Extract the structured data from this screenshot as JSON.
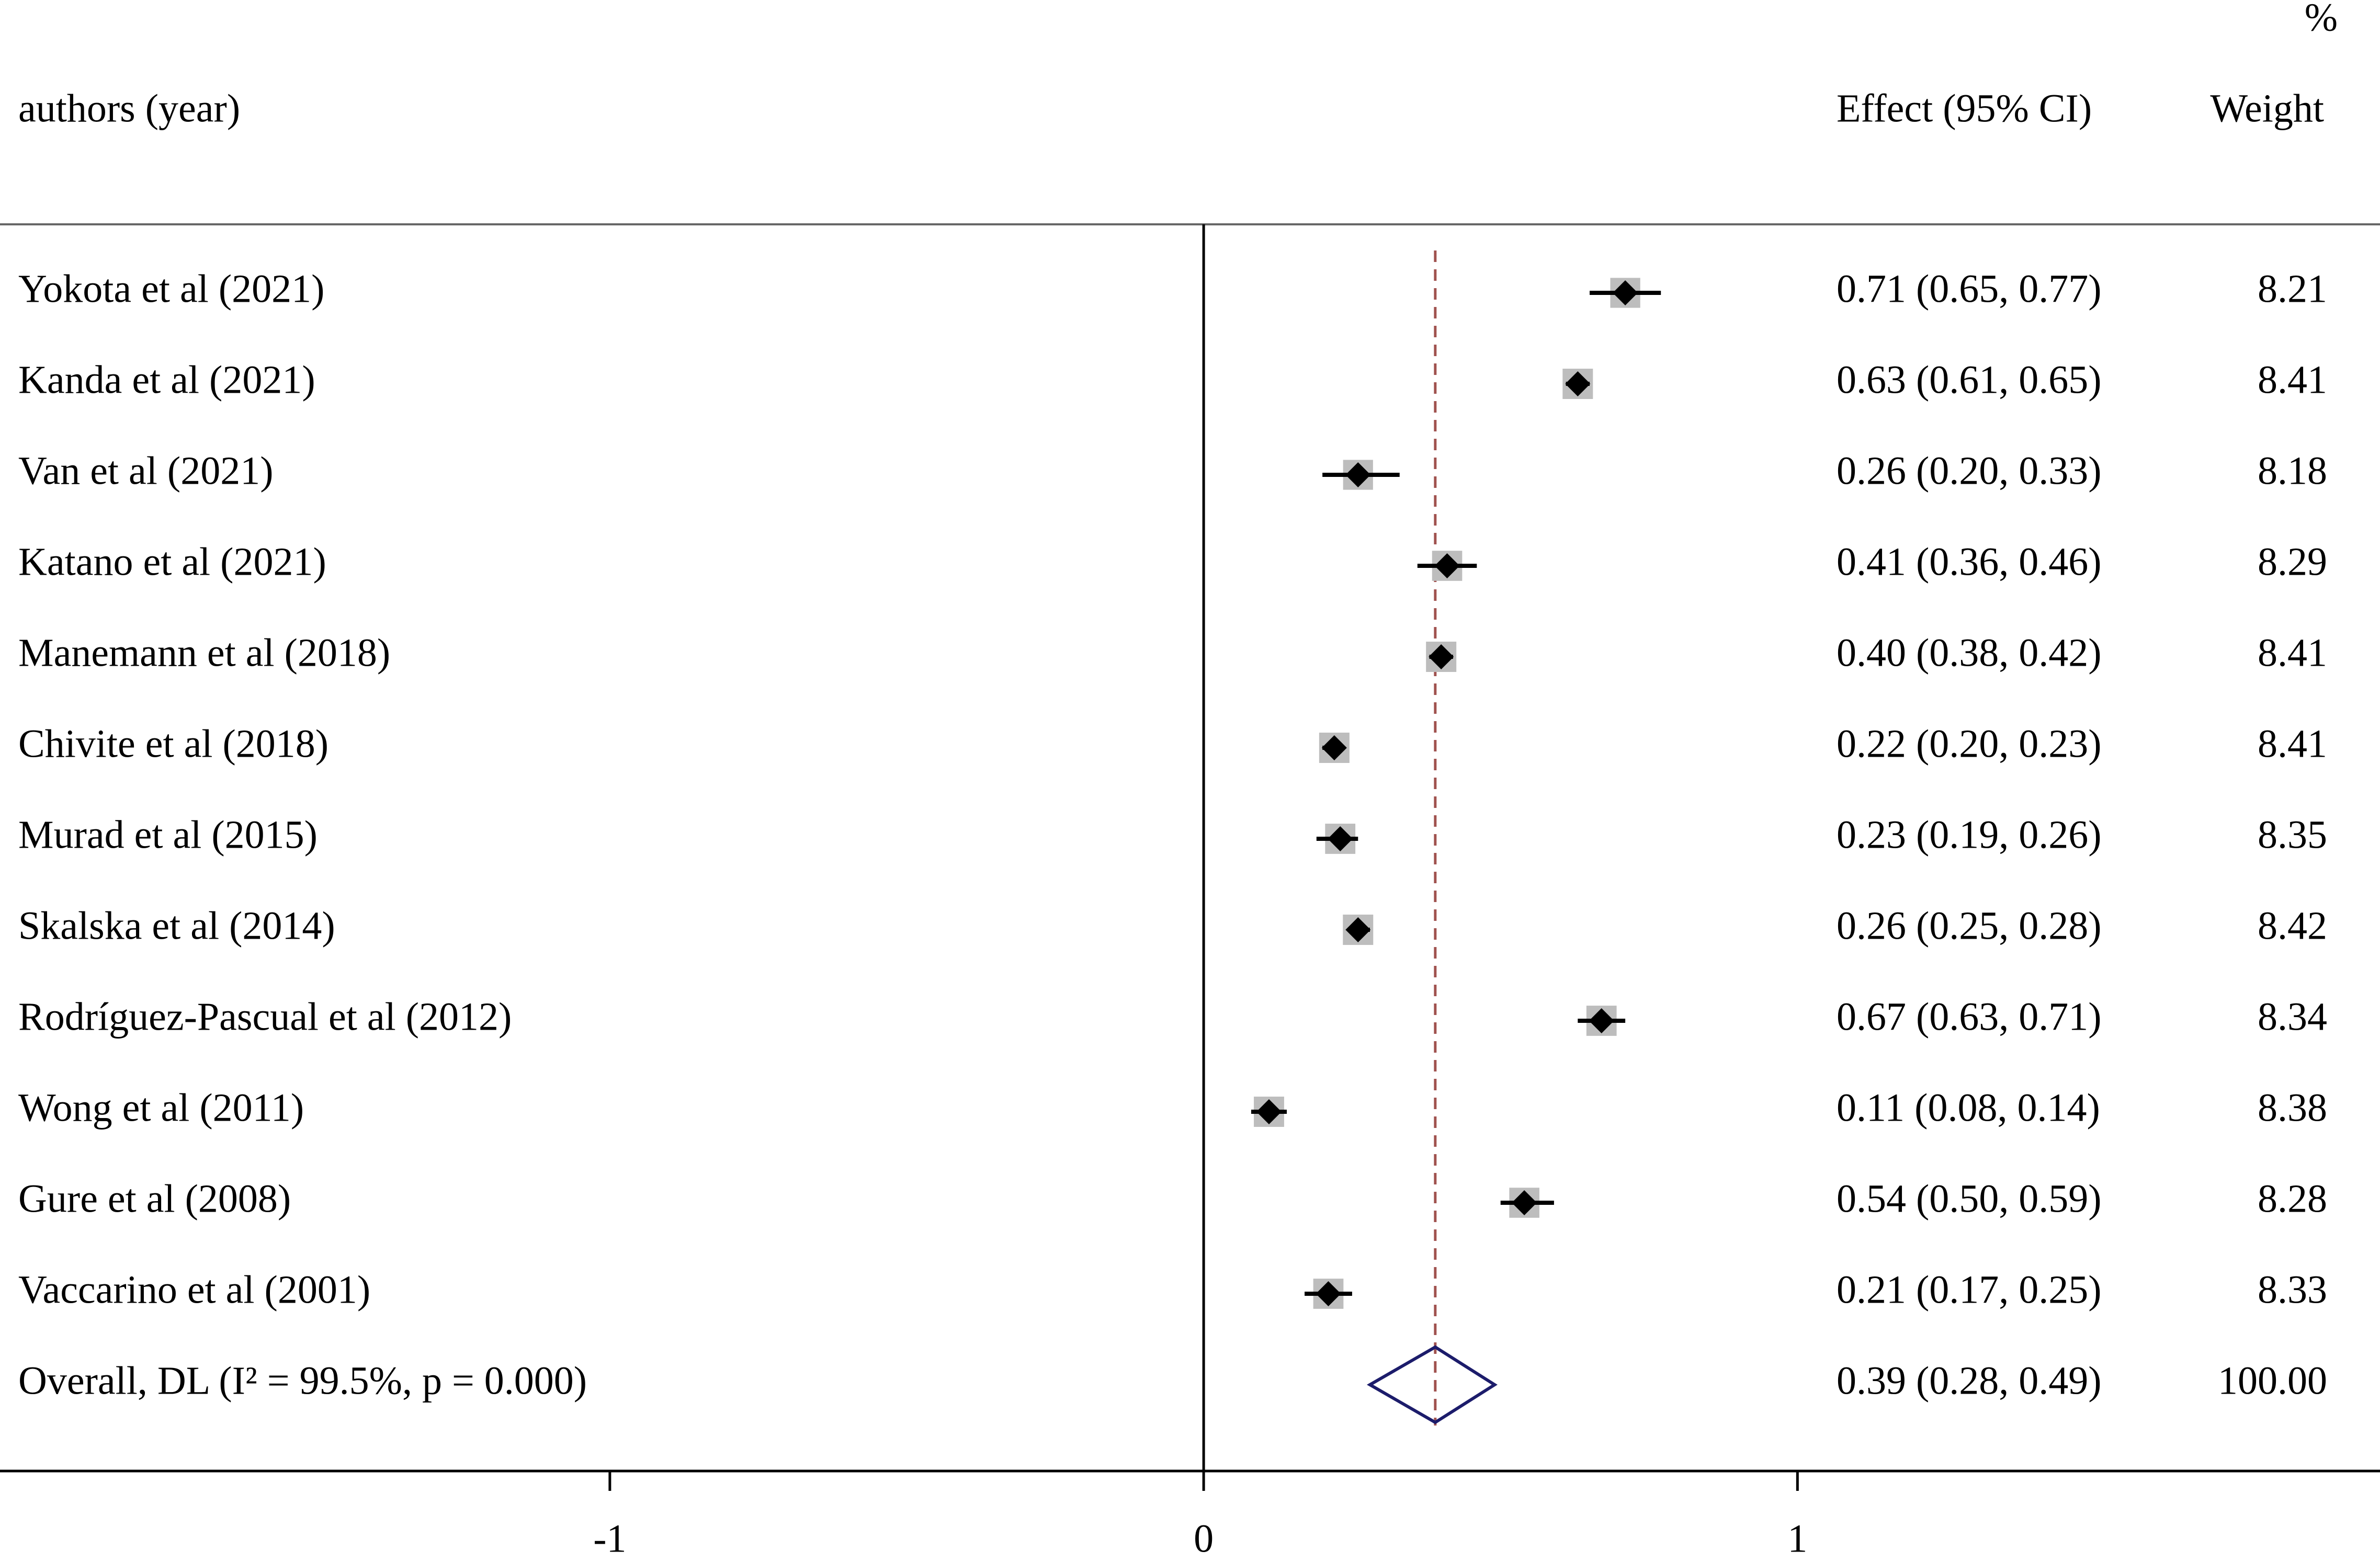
{
  "chart_data": {
    "type": "forest",
    "column_headers": {
      "study": "authors (year)",
      "effect": "Effect (95% CI)",
      "weight": "Weight",
      "weight_unit": "%"
    },
    "categories": [
      "Yokota et al (2021)",
      "Kanda et al (2021)",
      "Van et al (2021)",
      "Katano et al (2021)",
      "Manemann et al (2018)",
      "Chivite et al (2018)",
      "Murad et al (2015)",
      "Skalska et al (2014)",
      "Rodríguez-Pascual et al (2012)",
      "Wong et al (2011)",
      "Gure et al (2008)",
      "Vaccarino et al (2001)"
    ],
    "values": [
      0.71,
      0.63,
      0.26,
      0.41,
      0.4,
      0.22,
      0.23,
      0.26,
      0.67,
      0.11,
      0.54,
      0.21
    ],
    "lower": [
      0.65,
      0.61,
      0.2,
      0.36,
      0.38,
      0.2,
      0.19,
      0.25,
      0.63,
      0.08,
      0.5,
      0.17
    ],
    "upper": [
      0.77,
      0.65,
      0.33,
      0.46,
      0.42,
      0.23,
      0.26,
      0.28,
      0.71,
      0.14,
      0.59,
      0.25
    ],
    "value_labels": [
      "0.71 (0.65, 0.77)",
      "0.63 (0.61, 0.65)",
      "0.26 (0.20, 0.33)",
      "0.41 (0.36, 0.46)",
      "0.40 (0.38, 0.42)",
      "0.22 (0.20, 0.23)",
      "0.23 (0.19, 0.26)",
      "0.26 (0.25, 0.28)",
      "0.67 (0.63, 0.71)",
      "0.11 (0.08, 0.14)",
      "0.54 (0.50, 0.59)",
      "0.21 (0.17, 0.25)"
    ],
    "weights": [
      8.21,
      8.41,
      8.18,
      8.29,
      8.41,
      8.41,
      8.35,
      8.42,
      8.34,
      8.38,
      8.28,
      8.33
    ],
    "weight_labels": [
      "8.21",
      "8.41",
      "8.18",
      "8.29",
      "8.41",
      "8.41",
      "8.35",
      "8.42",
      "8.34",
      "8.38",
      "8.28",
      "8.33"
    ],
    "overall": {
      "label": "Overall, DL (I² = 99.5%, p = 0.000)",
      "value": 0.39,
      "lower": 0.28,
      "upper": 0.49,
      "value_label": "0.39 (0.28, 0.49)",
      "weight": 100,
      "weight_label": "100.00"
    },
    "null_line": 0,
    "xlim": [
      -2.027,
      1.981
    ],
    "xticks": [
      -1,
      0,
      1
    ],
    "colors": {
      "box": "#bdbdbd",
      "point": "#000000",
      "overall": "#1c1c6b",
      "reference": "#a0524f"
    }
  }
}
